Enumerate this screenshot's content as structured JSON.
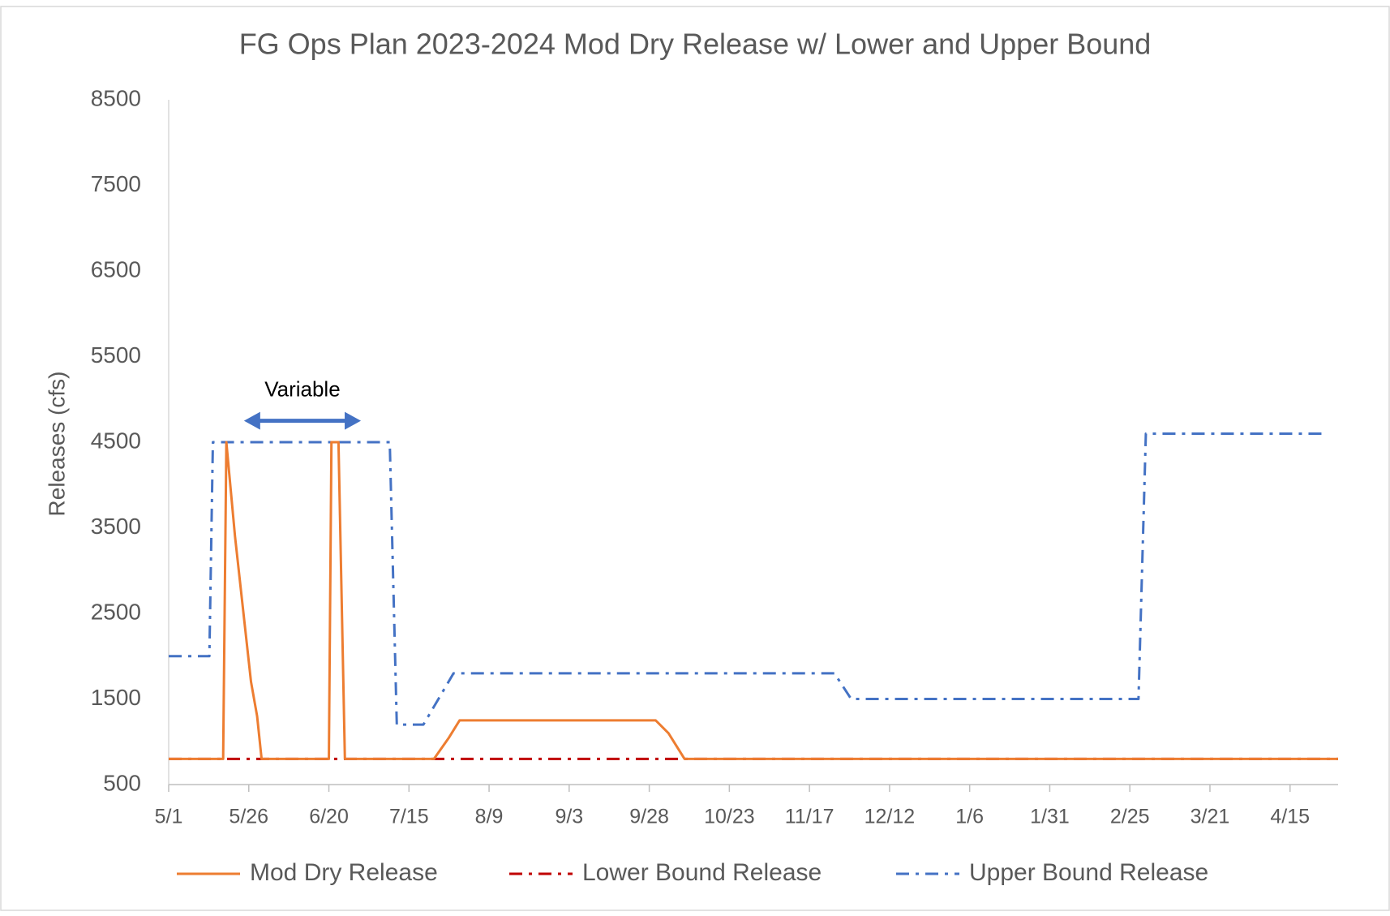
{
  "chart_data": {
    "type": "line",
    "title": "FG Ops Plan 2023-2024 Mod Dry Release w/ Lower and Upper Bound",
    "y_label": "Releases (cfs)",
    "annotation": "Variable",
    "xlim": [
      0,
      365
    ],
    "xticks": [
      {
        "value": 0,
        "label": "5/1"
      },
      {
        "value": 25,
        "label": "5/26"
      },
      {
        "value": 50,
        "label": "6/20"
      },
      {
        "value": 75,
        "label": "7/15"
      },
      {
        "value": 100,
        "label": "8/9"
      },
      {
        "value": 125,
        "label": "9/3"
      },
      {
        "value": 150,
        "label": "9/28"
      },
      {
        "value": 175,
        "label": "10/23"
      },
      {
        "value": 200,
        "label": "11/17"
      },
      {
        "value": 225,
        "label": "12/12"
      },
      {
        "value": 250,
        "label": "1/6"
      },
      {
        "value": 275,
        "label": "1/31"
      },
      {
        "value": 300,
        "label": "2/25"
      },
      {
        "value": 325,
        "label": "3/21"
      },
      {
        "value": 350,
        "label": "4/15"
      }
    ],
    "ylim": [
      500,
      8500
    ],
    "yticks": [
      500,
      1500,
      2500,
      3500,
      4500,
      5500,
      6500,
      7500,
      8500
    ],
    "legend": "bottom",
    "series": [
      {
        "name": "Mod Dry Release",
        "color": "#ed7d31",
        "style": "solid",
        "x": [
          0,
          17,
          18,
          20.7,
          25.7,
          27.6,
          29,
          50,
          50.8,
          53,
          55,
          82.8,
          87.5,
          90.8,
          152,
          156,
          161,
          365
        ],
        "values": [
          800,
          800,
          4500,
          3400,
          1700,
          1300,
          800,
          800,
          4500,
          4500,
          800,
          800,
          1050,
          1250,
          1250,
          1100,
          800,
          800
        ]
      },
      {
        "name": "Lower Bound Release",
        "color": "#c00000",
        "style": "dashdot",
        "x": [
          0,
          365
        ],
        "values": [
          800,
          800
        ]
      },
      {
        "name": "Upper Bound Release",
        "color": "#4472c4",
        "style": "dashdot",
        "x": [
          0,
          12.7,
          13.8,
          69,
          71.2,
          79.5,
          88.9,
          207.8,
          213,
          302.7,
          305,
          360.7
        ],
        "values": [
          2000,
          2000,
          4500,
          4500,
          1200,
          1200,
          1800,
          1800,
          1500,
          1500,
          4600,
          4600
        ]
      }
    ]
  }
}
